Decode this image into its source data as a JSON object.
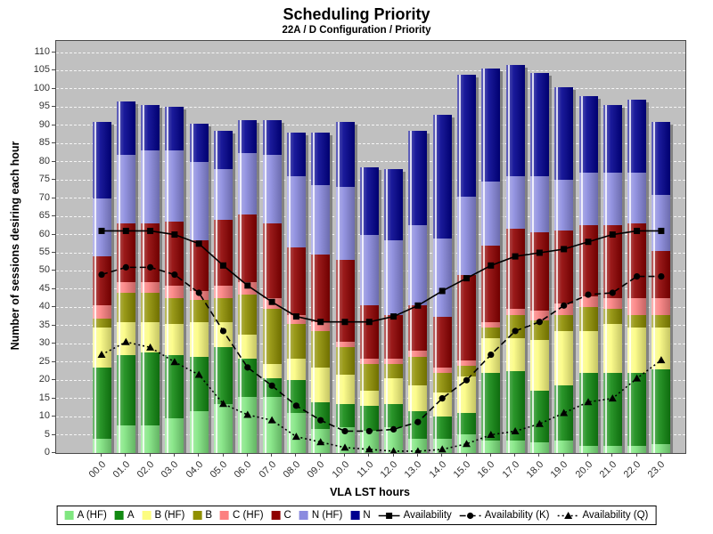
{
  "title": "Scheduling Priority",
  "subtitle": "22A / D Configuration /  Priority",
  "axes": {
    "y_label": "Number of sessions desiring each hour",
    "x_label": "VLA LST hours",
    "y_min": 0,
    "y_max": 110,
    "y_step": 5
  },
  "colors": {
    "plot_background": "#C0C0C0",
    "gridline": "#FFFFFF",
    "line_color": "#000000"
  },
  "chart_data": {
    "type": "bar",
    "stacked": true,
    "title": "Scheduling Priority",
    "xlabel": "VLA LST hours",
    "ylabel": "Number of sessions desiring each hour",
    "ylim": [
      0,
      110
    ],
    "grid": true,
    "legend_position": "bottom",
    "categories": [
      "00.0",
      "01.0",
      "02.0",
      "03.0",
      "04.0",
      "05.0",
      "06.0",
      "07.0",
      "08.0",
      "09.0",
      "10.0",
      "11.0",
      "12.0",
      "13.0",
      "14.0",
      "15.0",
      "16.0",
      "17.0",
      "18.0",
      "19.0",
      "20.0",
      "21.0",
      "22.0",
      "23.0"
    ],
    "y_ticks": [
      0,
      5,
      10,
      15,
      20,
      25,
      30,
      35,
      40,
      45,
      50,
      55,
      60,
      65,
      70,
      75,
      80,
      85,
      90,
      95,
      100,
      105,
      110
    ],
    "series": [
      {
        "name": "A (HF)",
        "color": "#80E680",
        "values": [
          4,
          7.5,
          7.5,
          9.5,
          11.5,
          13.5,
          15.5,
          15.5,
          11,
          6.5,
          7,
          6,
          7,
          4,
          4,
          5,
          3.5,
          3.5,
          3,
          3.5,
          2,
          2,
          2,
          2.5
        ]
      },
      {
        "name": "A",
        "color": "#128A12",
        "values": [
          19.5,
          19.5,
          20,
          17.5,
          15,
          15.5,
          10.5,
          5,
          9,
          7.5,
          6.5,
          7,
          6.5,
          7.5,
          6,
          6,
          18.5,
          19,
          14,
          15,
          20,
          20,
          20,
          20.5
        ]
      },
      {
        "name": "B (HF)",
        "color": "#FCFC80",
        "values": [
          11,
          9,
          8.5,
          8.5,
          9.5,
          7,
          6.5,
          4,
          6,
          9.5,
          8,
          4,
          7,
          7,
          6.5,
          10,
          9.5,
          9,
          14,
          15,
          11.5,
          13.5,
          12.5,
          11.5
        ]
      },
      {
        "name": "B",
        "color": "#8F8F00",
        "values": [
          2.5,
          8,
          8,
          7,
          6,
          6.5,
          11,
          15,
          9.5,
          10,
          7.5,
          7.5,
          4,
          8,
          5.5,
          3,
          3,
          6.5,
          5.5,
          4.5,
          6.5,
          4,
          3.5,
          3.5
        ]
      },
      {
        "name": "C (HF)",
        "color": "#FC8080",
        "values": [
          3.5,
          3,
          3,
          3.5,
          2.5,
          3.5,
          3.5,
          3,
          2.5,
          2.5,
          1.5,
          1.5,
          1.5,
          1.5,
          1.5,
          1.5,
          1.5,
          1.5,
          2.5,
          3,
          3,
          3,
          4.5,
          4.5
        ]
      },
      {
        "name": "C",
        "color": "#8F0000",
        "values": [
          13.5,
          16,
          16,
          17.5,
          14,
          18,
          18.5,
          20.5,
          18.5,
          18.5,
          22.5,
          14.5,
          12,
          12.5,
          14,
          23.5,
          21,
          22,
          21.5,
          20,
          19.5,
          20,
          20.5,
          13
        ]
      },
      {
        "name": "N (HF)",
        "color": "#8A8ADF",
        "values": [
          16,
          19,
          20,
          19.5,
          21.5,
          14,
          17,
          19,
          19.5,
          19,
          20,
          19.5,
          20.5,
          22,
          21.5,
          21.5,
          17.5,
          14.5,
          15.5,
          14,
          14.5,
          14.5,
          14,
          15.5
        ]
      },
      {
        "name": "N",
        "color": "#00008F",
        "values": [
          21,
          14.5,
          12.5,
          12,
          10.5,
          10.5,
          9,
          9.5,
          12,
          14.5,
          18,
          18.5,
          19.5,
          26,
          34,
          33.5,
          31,
          30.5,
          28.5,
          25.5,
          21,
          18.5,
          20,
          20
        ]
      }
    ],
    "line_series": [
      {
        "name": "Availability",
        "marker": "square",
        "dash": "solid",
        "color": "#000000",
        "values": [
          61,
          61,
          61,
          60,
          57.5,
          51.5,
          46,
          41.5,
          37.5,
          36,
          36,
          36,
          37.5,
          40.5,
          44.5,
          48,
          51.5,
          54,
          55,
          56,
          58,
          60,
          61,
          61
        ]
      },
      {
        "name": "Availability (K)",
        "marker": "circle",
        "dash": "dashed",
        "color": "#000000",
        "values": [
          49,
          51,
          51,
          49,
          44,
          33.5,
          23.5,
          18.5,
          13,
          9,
          6,
          6,
          6.5,
          8.5,
          15,
          20,
          27,
          33.5,
          36,
          40.5,
          43.5,
          44,
          48.5,
          48.5
        ]
      },
      {
        "name": "Availability (Q)",
        "marker": "triangle",
        "dash": "dotted",
        "color": "#000000",
        "values": [
          27,
          30.5,
          29,
          25,
          21.5,
          13.5,
          10.5,
          9,
          4.5,
          3,
          1.5,
          1,
          0.5,
          0.5,
          1,
          2.5,
          5,
          6,
          8,
          11,
          14,
          15,
          20.5,
          25.5
        ]
      }
    ]
  },
  "legend": {
    "entries": [
      "A (HF)",
      "A",
      "B (HF)",
      "B",
      "C (HF)",
      "C",
      "N (HF)",
      "N",
      "Availability",
      "Availability (K)",
      "Availability (Q)"
    ]
  }
}
